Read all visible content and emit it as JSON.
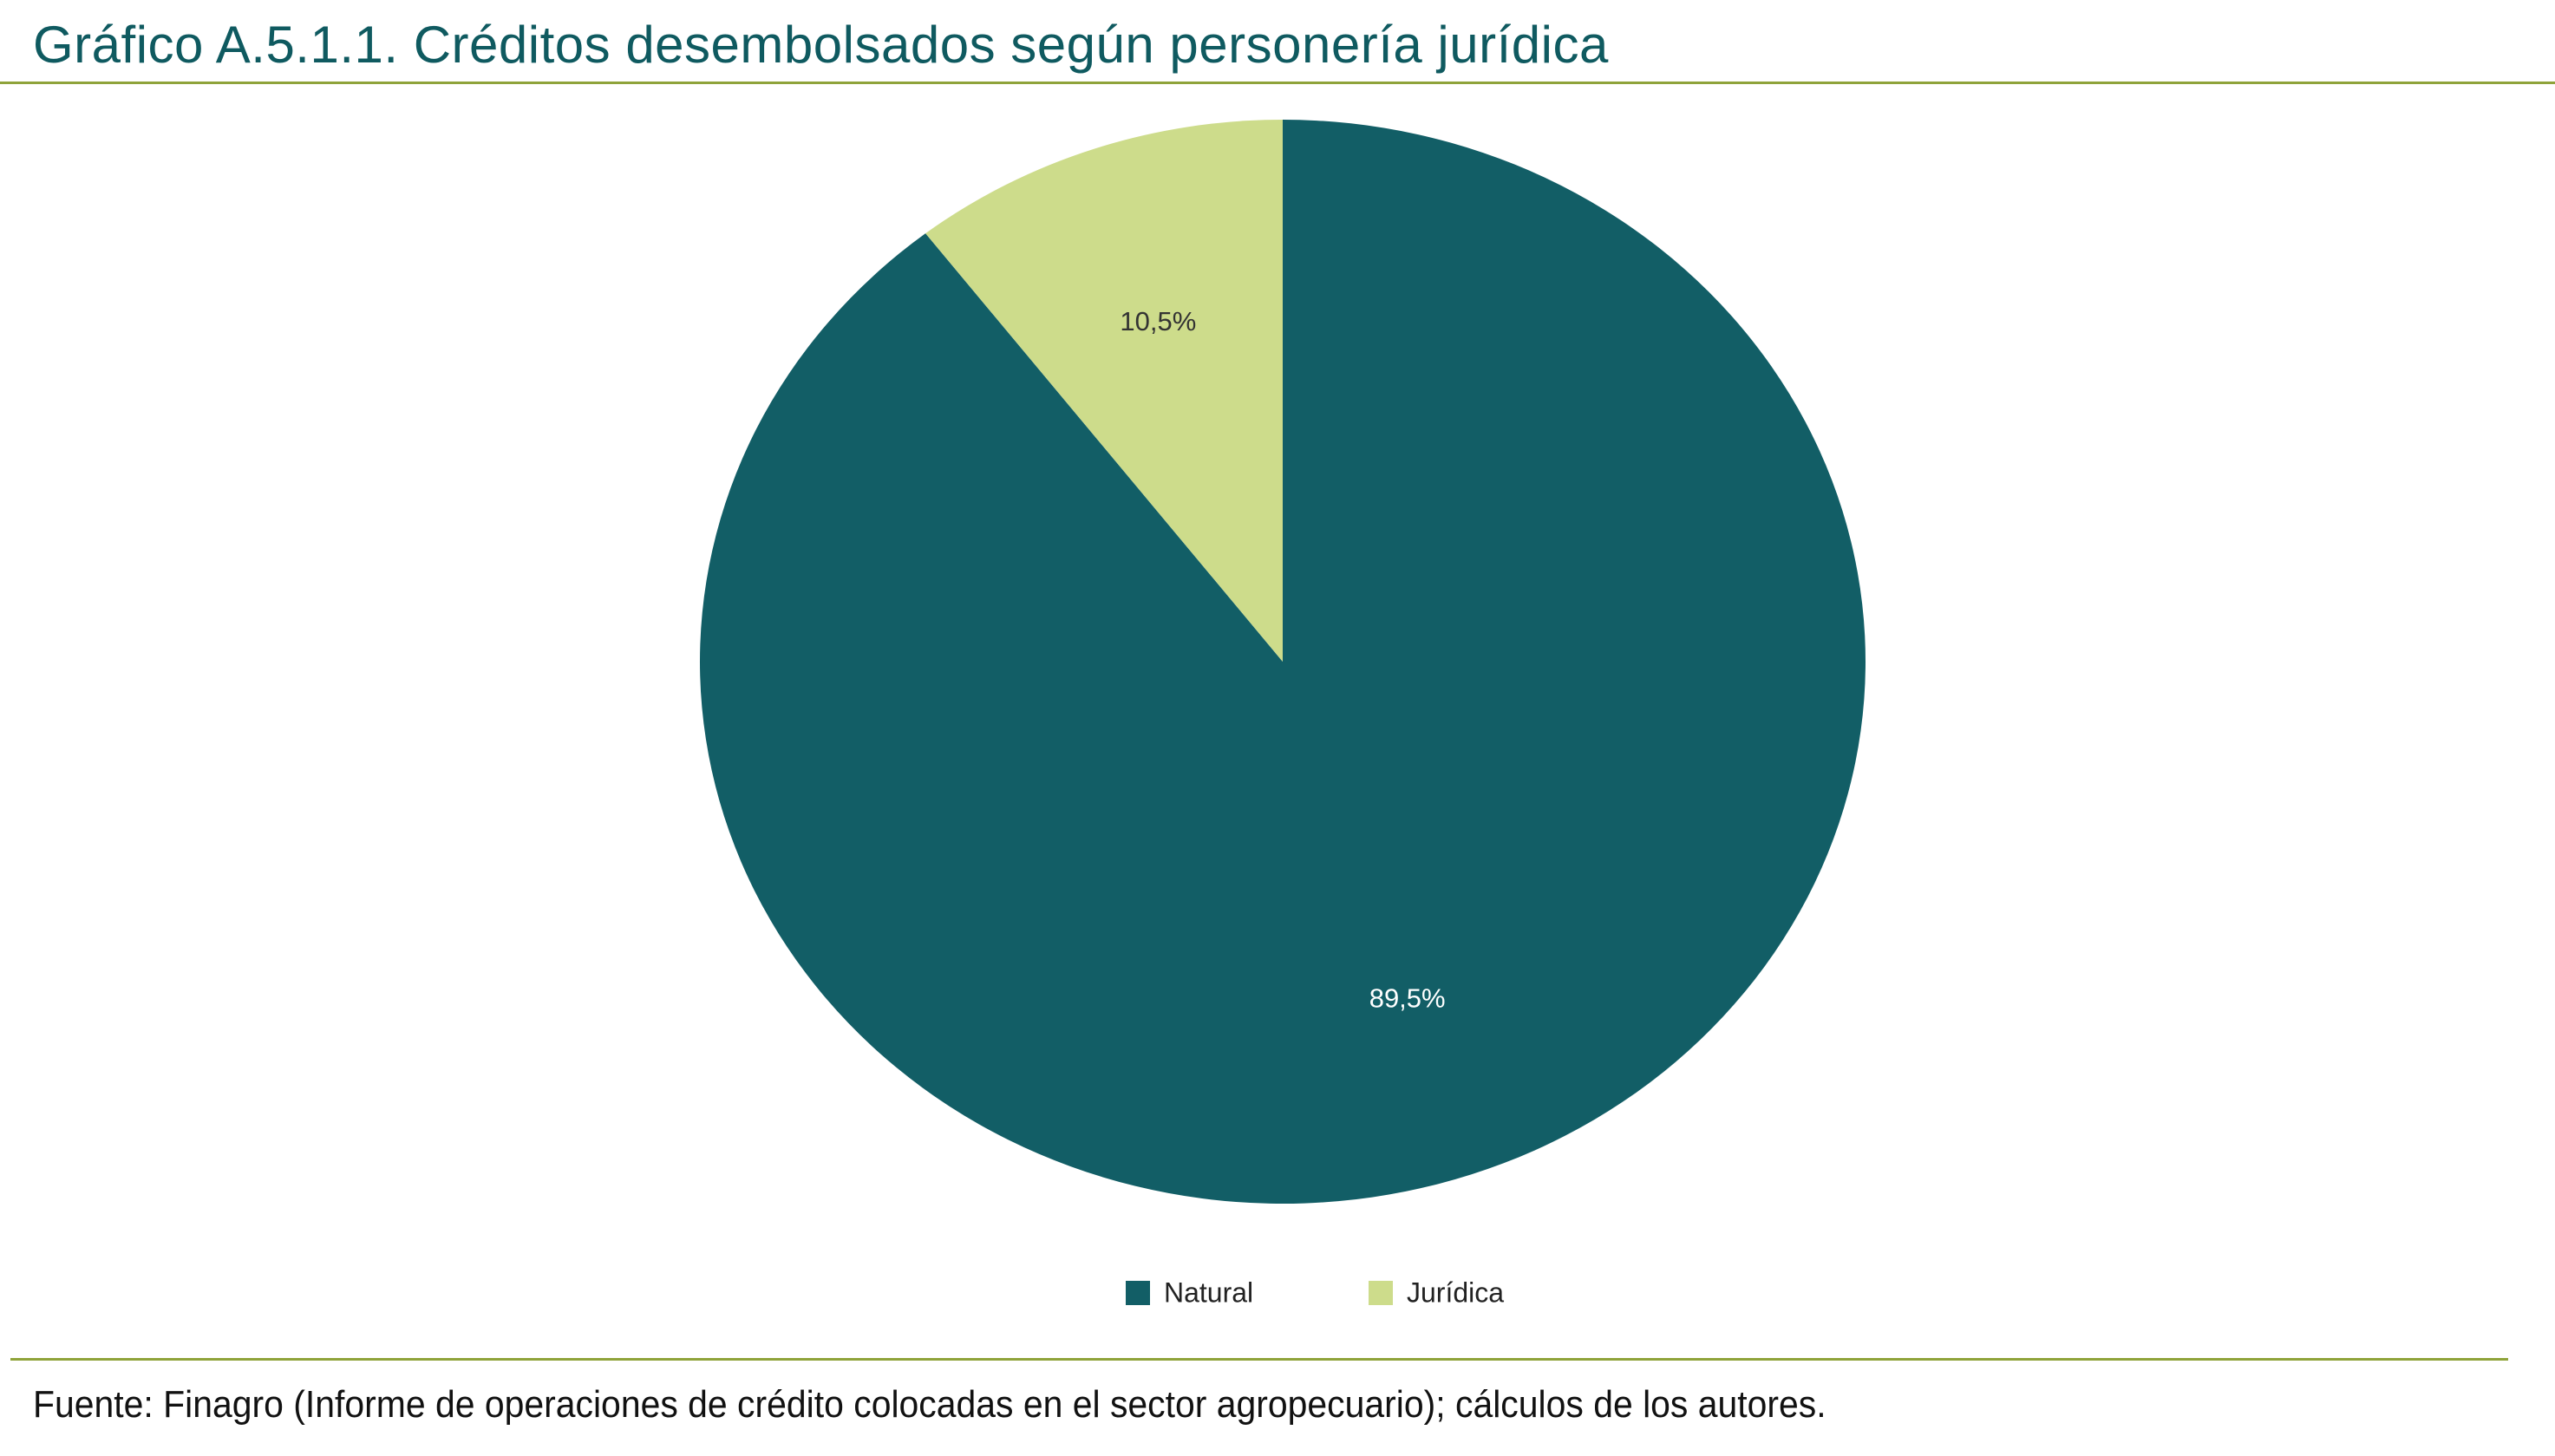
{
  "header": {
    "title": "Gráfico A.5.1.1. Créditos desembolsados según personería jurídica"
  },
  "footer": {
    "source": "Fuente: Finagro (Informe de operaciones de crédito colocadas en el sector agropecuario); cálculos de los autores."
  },
  "chart_data": {
    "type": "pie",
    "title": "Gráfico A.5.1.1. Créditos desembolsados según personería jurídica",
    "categories": [
      "Natural",
      "Jurídica"
    ],
    "values": [
      89.5,
      10.5
    ],
    "value_labels": [
      "89,5%",
      "10,5%"
    ],
    "unit": "%",
    "colors": [
      "#125e66",
      "#cddc8b"
    ],
    "label_colors": [
      "#ffffff",
      "#333333"
    ],
    "start_angle_deg": 0,
    "direction": "clockwise",
    "legend_position": "bottom"
  }
}
